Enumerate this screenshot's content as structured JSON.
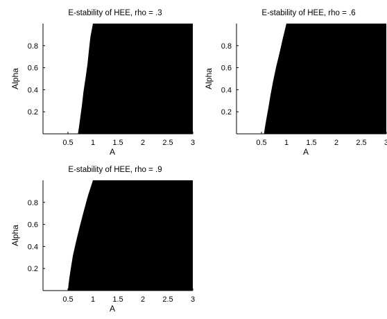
{
  "chart_data": [
    {
      "type": "heatmap",
      "title": "E-stability of HEE, rho = .3",
      "xlabel": "A",
      "ylabel": "Alpha",
      "xlim": [
        0,
        3
      ],
      "ylim": [
        0,
        1
      ],
      "xticks": [
        "0.5",
        "1",
        "1.5",
        "2",
        "2.5",
        "3"
      ],
      "yticks": [
        "0.2",
        "0.4",
        "0.6",
        "0.8"
      ],
      "boundary_A": [
        0.7,
        0.72,
        0.75,
        0.78,
        0.81,
        0.85,
        0.89,
        0.92,
        0.95,
        1.0
      ],
      "boundary_alpha": [
        0.0,
        0.06,
        0.16,
        0.26,
        0.38,
        0.5,
        0.63,
        0.76,
        0.88,
        1.0
      ],
      "region_left": "white",
      "region_right": "black"
    },
    {
      "type": "heatmap",
      "title": "E-stability of HEE, rho = .6",
      "xlabel": "A",
      "ylabel": "Alpha",
      "xlim": [
        0,
        3
      ],
      "ylim": [
        0,
        1
      ],
      "xticks": [
        "0.5",
        "1",
        "1.5",
        "2",
        "2.5",
        "3"
      ],
      "yticks": [
        "0.2",
        "0.4",
        "0.6",
        "0.8"
      ],
      "boundary_A": [
        0.55,
        0.57,
        0.6,
        0.64,
        0.68,
        0.73,
        0.79,
        0.86,
        0.93,
        1.0
      ],
      "boundary_alpha": [
        0.0,
        0.06,
        0.14,
        0.24,
        0.35,
        0.47,
        0.6,
        0.73,
        0.87,
        1.0
      ],
      "region_left": "white",
      "region_right": "black"
    },
    {
      "type": "heatmap",
      "title": "E-stability of HEE, rho = .9",
      "xlabel": "A",
      "ylabel": "Alpha",
      "xlim": [
        0,
        3
      ],
      "ylim": [
        0,
        1
      ],
      "xticks": [
        "0.5",
        "1",
        "1.5",
        "2",
        "2.5",
        "3"
      ],
      "yticks": [
        "0.2",
        "0.4",
        "0.6",
        "0.8"
      ],
      "boundary_A": [
        0.5,
        0.51,
        0.53,
        0.56,
        0.6,
        0.66,
        0.73,
        0.81,
        0.9,
        1.0
      ],
      "boundary_alpha": [
        0.0,
        0.05,
        0.12,
        0.21,
        0.32,
        0.44,
        0.57,
        0.71,
        0.86,
        1.0
      ],
      "region_left": "white",
      "region_right": "black"
    }
  ]
}
